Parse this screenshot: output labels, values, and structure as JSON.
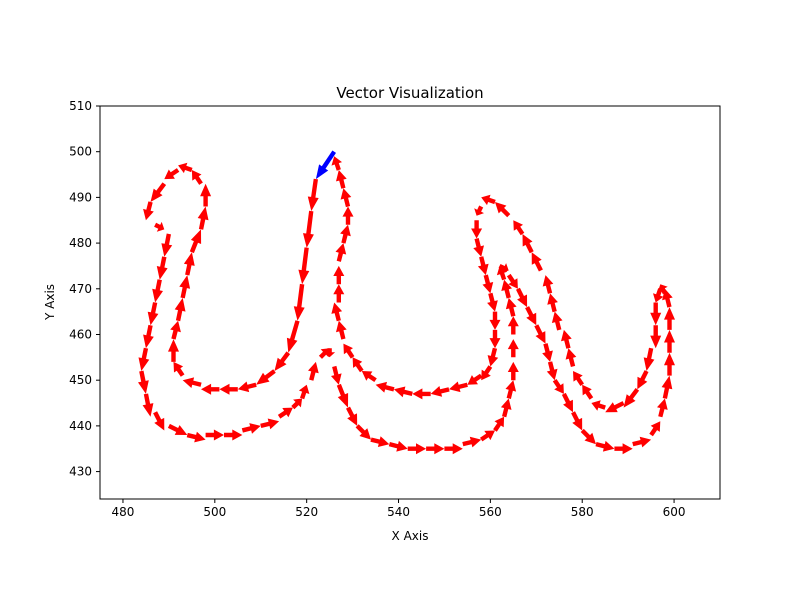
{
  "chart_data": {
    "type": "quiver",
    "title": "Vector Visualization",
    "xlabel": "X Axis",
    "ylabel": "Y Axis",
    "xlim": [
      475,
      610
    ],
    "ylim": [
      424,
      510
    ],
    "xticks": [
      480,
      500,
      520,
      540,
      560,
      580,
      600
    ],
    "yticks": [
      430,
      440,
      450,
      460,
      470,
      480,
      490,
      500,
      510
    ],
    "grid": false,
    "colors": {
      "start_arrow": "#0000ff",
      "arrow": "#ff0000"
    },
    "start_vector": {
      "x": 526,
      "y": 500,
      "u": -4,
      "v": -6
    },
    "vectors": [
      [
        522,
        494,
        -1,
        -7
      ],
      [
        521,
        487,
        -1,
        -8
      ],
      [
        520,
        479,
        -1,
        -8
      ],
      [
        519,
        471,
        -1,
        -8
      ],
      [
        518,
        463,
        -2,
        -7
      ],
      [
        516,
        456,
        -3,
        -4
      ],
      [
        513,
        452,
        -4,
        -3
      ],
      [
        509,
        449,
        -4,
        -1
      ],
      [
        505,
        448,
        -4,
        0
      ],
      [
        501,
        448,
        -4,
        0
      ],
      [
        497,
        449,
        -4,
        1
      ],
      [
        493,
        451,
        -2,
        3
      ],
      [
        491,
        454,
        0,
        5
      ],
      [
        491,
        459,
        1,
        4
      ],
      [
        492,
        463,
        1,
        5
      ],
      [
        493,
        468,
        1,
        5
      ],
      [
        494,
        473,
        1,
        5
      ],
      [
        495,
        478,
        2,
        5
      ],
      [
        497,
        483,
        1,
        5
      ],
      [
        498,
        488,
        0,
        5
      ],
      [
        497,
        493,
        -2,
        3
      ],
      [
        495,
        496,
        -3,
        1
      ],
      [
        492,
        496,
        -3,
        -2
      ],
      [
        489,
        493,
        -3,
        -4
      ],
      [
        486,
        489,
        -1,
        -4
      ],
      [
        487,
        484,
        2,
        -1
      ],
      [
        490,
        482,
        -1,
        -5
      ],
      [
        489,
        477,
        -1,
        -5
      ],
      [
        488,
        472,
        -1,
        -5
      ],
      [
        487,
        467,
        -1,
        -5
      ],
      [
        486,
        462,
        -1,
        -5
      ],
      [
        485,
        457,
        -1,
        -5
      ],
      [
        484,
        452,
        1,
        -5
      ],
      [
        485,
        447,
        1,
        -5
      ],
      [
        487,
        443,
        2,
        -4
      ],
      [
        490,
        440,
        4,
        -2
      ],
      [
        494,
        438,
        4,
        -1
      ],
      [
        498,
        438,
        4,
        0
      ],
      [
        502,
        438,
        4,
        0
      ],
      [
        506,
        439,
        4,
        1
      ],
      [
        510,
        440,
        4,
        1
      ],
      [
        514,
        442,
        3,
        2
      ],
      [
        517,
        444,
        2,
        2
      ],
      [
        519,
        446,
        1,
        3
      ],
      [
        521,
        450,
        1,
        4
      ],
      [
        523,
        455,
        2,
        2
      ],
      [
        525,
        457,
        0,
        -2
      ],
      [
        526,
        453,
        1,
        -4
      ],
      [
        527,
        449,
        2,
        -5
      ],
      [
        529,
        444,
        2,
        -4
      ],
      [
        531,
        440,
        3,
        -3
      ],
      [
        534,
        437,
        4,
        -1
      ],
      [
        538,
        436,
        4,
        -1
      ],
      [
        542,
        435,
        4,
        0
      ],
      [
        546,
        435,
        4,
        0
      ],
      [
        550,
        435,
        4,
        0
      ],
      [
        554,
        436,
        4,
        1
      ],
      [
        558,
        437,
        3,
        2
      ],
      [
        561,
        439,
        2,
        3
      ],
      [
        563,
        442,
        1,
        4
      ],
      [
        564,
        446,
        1,
        4
      ],
      [
        565,
        450,
        0,
        4
      ],
      [
        565,
        455,
        0,
        4
      ],
      [
        565,
        460,
        0,
        4
      ],
      [
        565,
        464,
        -1,
        4
      ],
      [
        564,
        468,
        -1,
        4
      ],
      [
        563,
        472,
        -1,
        3
      ],
      [
        562,
        475,
        2,
        -1
      ],
      [
        564,
        473,
        2,
        -3
      ],
      [
        566,
        470,
        2,
        -4
      ],
      [
        568,
        466,
        2,
        -4
      ],
      [
        570,
        462,
        2,
        -4
      ],
      [
        572,
        458,
        1,
        -4
      ],
      [
        573,
        454,
        1,
        -4
      ],
      [
        574,
        450,
        2,
        -3
      ],
      [
        576,
        447,
        2,
        -4
      ],
      [
        578,
        443,
        2,
        -4
      ],
      [
        580,
        439,
        3,
        -3
      ],
      [
        583,
        436,
        4,
        -1
      ],
      [
        587,
        435,
        4,
        0
      ],
      [
        591,
        436,
        4,
        1
      ],
      [
        595,
        438,
        2,
        3
      ],
      [
        597,
        442,
        1,
        4
      ],
      [
        598,
        446,
        1,
        5
      ],
      [
        599,
        451,
        0,
        5
      ],
      [
        599,
        456,
        0,
        5
      ],
      [
        599,
        461,
        0,
        5
      ],
      [
        599,
        466,
        -1,
        4
      ],
      [
        598,
        469,
        -1,
        2
      ],
      [
        597,
        470,
        -1,
        -3
      ],
      [
        596,
        467,
        0,
        -5
      ],
      [
        596,
        462,
        0,
        -5
      ],
      [
        595,
        457,
        -1,
        -5
      ],
      [
        594,
        452,
        -2,
        -4
      ],
      [
        592,
        448,
        -3,
        -4
      ],
      [
        589,
        445,
        -4,
        -2
      ],
      [
        585,
        444,
        -3,
        1
      ],
      [
        582,
        446,
        -2,
        3
      ],
      [
        580,
        449,
        -2,
        3
      ],
      [
        578,
        453,
        -1,
        4
      ],
      [
        577,
        457,
        -1,
        4
      ],
      [
        575,
        461,
        -1,
        4
      ],
      [
        574,
        465,
        -1,
        4
      ],
      [
        573,
        469,
        -1,
        4
      ],
      [
        571,
        474,
        -2,
        4
      ],
      [
        569,
        478,
        -2,
        4
      ],
      [
        567,
        482,
        -2,
        3
      ],
      [
        564,
        486,
        -3,
        3
      ],
      [
        561,
        489,
        -3,
        1
      ],
      [
        558,
        488,
        -1,
        -2
      ],
      [
        557,
        485,
        0,
        -4
      ],
      [
        557,
        481,
        1,
        -4
      ],
      [
        558,
        477,
        1,
        -4
      ],
      [
        559,
        473,
        1,
        -4
      ],
      [
        560,
        469,
        1,
        -4
      ],
      [
        561,
        465,
        0,
        -4
      ],
      [
        561,
        461,
        0,
        -4
      ],
      [
        561,
        457,
        -1,
        -4
      ],
      [
        560,
        453,
        -2,
        -3
      ],
      [
        558,
        451,
        -3,
        -2
      ],
      [
        555,
        449,
        -4,
        -1
      ],
      [
        551,
        448,
        -4,
        -1
      ],
      [
        547,
        447,
        -4,
        0
      ],
      [
        543,
        447,
        -4,
        1
      ],
      [
        539,
        448,
        -4,
        1
      ],
      [
        535,
        450,
        -3,
        2
      ],
      [
        532,
        452,
        -2,
        3
      ],
      [
        530,
        455,
        -2,
        3
      ],
      [
        528,
        459,
        -1,
        4
      ],
      [
        527,
        463,
        -1,
        4
      ],
      [
        527,
        467,
        0,
        4
      ],
      [
        527,
        471,
        0,
        4
      ],
      [
        527,
        476,
        1,
        4
      ],
      [
        528,
        480,
        1,
        4
      ],
      [
        529,
        484,
        0,
        4
      ],
      [
        529,
        488,
        -1,
        4
      ],
      [
        528,
        492,
        -1,
        4
      ],
      [
        527,
        496,
        -1,
        3
      ]
    ]
  }
}
